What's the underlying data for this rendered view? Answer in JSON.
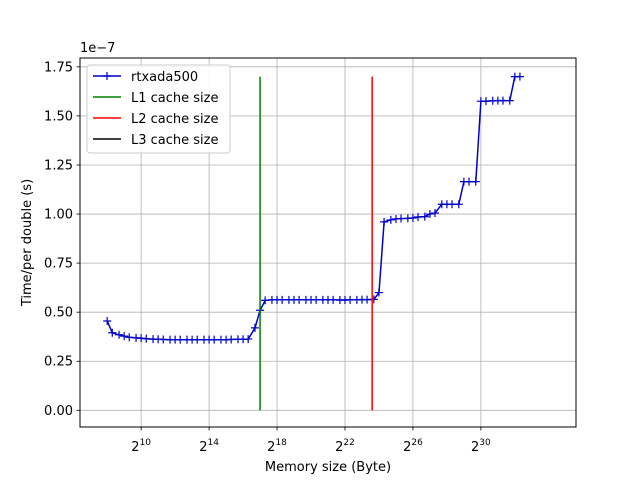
{
  "chart_data": {
    "type": "line",
    "title": "",
    "xlabel": "Memory size (Byte)",
    "ylabel": "Time/per double (s)",
    "y_scale_label": "1e−7",
    "x_scale": "log2",
    "xlim_log2": [
      6.4,
      35.6
    ],
    "ylim": [
      -0.085,
      1.795
    ],
    "grid": true,
    "legend_position": "top-left",
    "x_ticks": [
      {
        "exp": 10,
        "base": "2",
        "sup": "10"
      },
      {
        "exp": 14,
        "base": "2",
        "sup": "14"
      },
      {
        "exp": 18,
        "base": "2",
        "sup": "18"
      },
      {
        "exp": 22,
        "base": "2",
        "sup": "22"
      },
      {
        "exp": 26,
        "base": "2",
        "sup": "26"
      },
      {
        "exp": 30,
        "base": "2",
        "sup": "30"
      }
    ],
    "y_ticks": [
      {
        "value": 0.0,
        "label": "0.00"
      },
      {
        "value": 0.25,
        "label": "0.25"
      },
      {
        "value": 0.5,
        "label": "0.50"
      },
      {
        "value": 0.75,
        "label": "0.75"
      },
      {
        "value": 1.0,
        "label": "1.00"
      },
      {
        "value": 1.25,
        "label": "1.25"
      },
      {
        "value": 1.5,
        "label": "1.50"
      },
      {
        "value": 1.75,
        "label": "1.75"
      }
    ],
    "series": [
      {
        "name": "rtxada500",
        "color": "#0000cc",
        "marker": "plus",
        "x_log2": [
          8.0,
          8.3,
          8.7,
          9.0,
          9.3,
          9.7,
          10.0,
          10.3,
          10.7,
          11.0,
          11.3,
          11.7,
          12.0,
          12.3,
          12.7,
          13.0,
          13.3,
          13.7,
          14.0,
          14.3,
          14.7,
          15.0,
          15.3,
          15.7,
          16.0,
          16.3,
          16.7,
          17.0,
          17.3,
          17.7,
          18.0,
          18.3,
          18.7,
          19.0,
          19.3,
          19.7,
          20.0,
          20.3,
          20.7,
          21.0,
          21.3,
          21.7,
          22.0,
          22.3,
          22.7,
          23.0,
          23.3,
          23.7,
          24.0,
          24.3,
          24.7,
          25.0,
          25.3,
          25.7,
          26.0,
          26.3,
          26.7,
          27.0,
          27.3,
          27.7,
          28.0,
          28.3,
          28.7,
          29.0,
          29.3,
          29.7,
          30.0,
          30.3,
          30.7,
          31.0,
          31.3,
          31.7,
          32.0,
          32.3
        ],
        "y": [
          0.455,
          0.395,
          0.385,
          0.378,
          0.372,
          0.369,
          0.367,
          0.365,
          0.363,
          0.362,
          0.361,
          0.36,
          0.36,
          0.36,
          0.36,
          0.36,
          0.36,
          0.36,
          0.36,
          0.36,
          0.36,
          0.36,
          0.361,
          0.362,
          0.362,
          0.363,
          0.42,
          0.51,
          0.56,
          0.563,
          0.563,
          0.563,
          0.563,
          0.563,
          0.563,
          0.563,
          0.563,
          0.563,
          0.563,
          0.563,
          0.563,
          0.562,
          0.562,
          0.563,
          0.563,
          0.564,
          0.564,
          0.565,
          0.6,
          0.96,
          0.97,
          0.975,
          0.977,
          0.978,
          0.98,
          0.985,
          0.987,
          1.0,
          1.005,
          1.05,
          1.05,
          1.05,
          1.05,
          1.165,
          1.165,
          1.165,
          1.575,
          1.575,
          1.577,
          1.578,
          1.578,
          1.578,
          1.7,
          1.7
        ]
      },
      {
        "name": "L1 cache size",
        "color": "#008000",
        "x_log2": 17.0,
        "y_range": [
          0.0,
          1.7
        ]
      },
      {
        "name": "L2 cache size",
        "color": "#ff0000",
        "x_log2": 23.6,
        "y_range": [
          0.0,
          1.7
        ]
      },
      {
        "name": "L3 cache size",
        "color": "#000000"
      }
    ]
  }
}
